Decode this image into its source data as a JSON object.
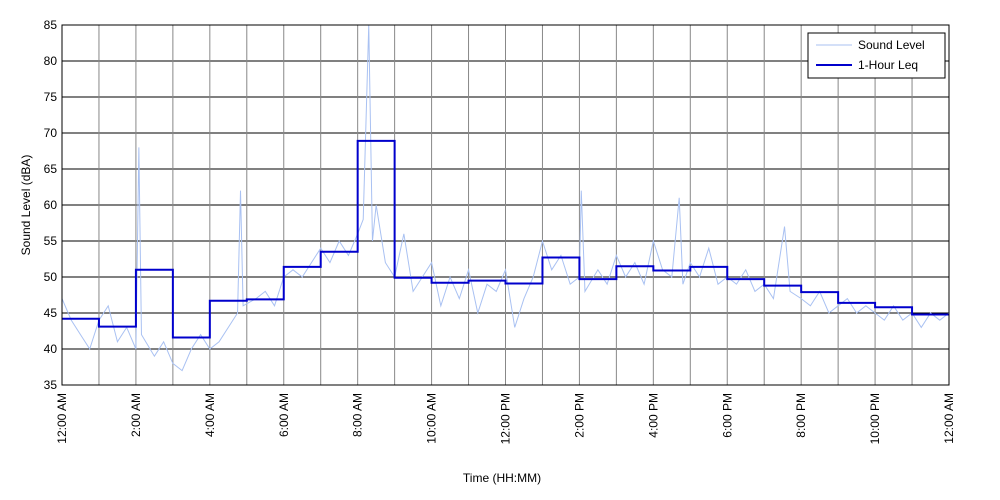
{
  "chart_data": {
    "type": "line",
    "xlabel": "Time (HH:MM)",
    "ylabel": "Sound Level (dBA)",
    "xlim": [
      0,
      24
    ],
    "ylim": [
      35,
      85
    ],
    "xticks": [
      {
        "value": 0,
        "label": "12:00 AM"
      },
      {
        "value": 2,
        "label": "2:00 AM"
      },
      {
        "value": 4,
        "label": "4:00 AM"
      },
      {
        "value": 6,
        "label": "6:00 AM"
      },
      {
        "value": 8,
        "label": "8:00 AM"
      },
      {
        "value": 10,
        "label": "10:00 AM"
      },
      {
        "value": 12,
        "label": "12:00 PM"
      },
      {
        "value": 14,
        "label": "2:00 PM"
      },
      {
        "value": 16,
        "label": "4:00 PM"
      },
      {
        "value": 18,
        "label": "6:00 PM"
      },
      {
        "value": 20,
        "label": "8:00 PM"
      },
      {
        "value": 22,
        "label": "10:00 PM"
      },
      {
        "value": 24,
        "label": "12:00 AM"
      }
    ],
    "xminorticks": [
      1,
      3,
      5,
      7,
      9,
      11,
      13,
      15,
      17,
      19,
      21,
      23
    ],
    "yticks": [
      35,
      40,
      45,
      50,
      55,
      60,
      65,
      70,
      75,
      80,
      85
    ],
    "grid": true,
    "legend": "upper right",
    "series": [
      {
        "name": "Sound Level",
        "color": "#a9c1f2",
        "style": "line",
        "x": [
          0,
          0.25,
          0.5,
          0.75,
          1,
          1.25,
          1.5,
          1.75,
          2,
          2.08,
          2.15,
          2.5,
          2.75,
          3,
          3.25,
          3.5,
          3.75,
          4,
          4.25,
          4.5,
          4.75,
          4.83,
          4.9,
          5.25,
          5.5,
          5.75,
          6,
          6.25,
          6.5,
          6.75,
          7,
          7.25,
          7.5,
          7.75,
          8,
          8.15,
          8.3,
          8.4,
          8.5,
          8.75,
          9,
          9.25,
          9.5,
          9.75,
          10,
          10.25,
          10.5,
          10.75,
          11,
          11.25,
          11.5,
          11.75,
          12,
          12.25,
          12.5,
          12.75,
          13,
          13.25,
          13.5,
          13.75,
          14,
          14.05,
          14.15,
          14.5,
          14.75,
          15,
          15.25,
          15.5,
          15.75,
          16,
          16.25,
          16.5,
          16.7,
          16.8,
          17,
          17.25,
          17.5,
          17.75,
          18,
          18.25,
          18.5,
          18.75,
          19,
          19.25,
          19.55,
          19.7,
          20,
          20.25,
          20.5,
          20.75,
          21,
          21.25,
          21.5,
          21.75,
          22,
          22.25,
          22.5,
          22.75,
          23,
          23.25,
          23.5,
          23.75,
          24
        ],
        "values": [
          47,
          44,
          42,
          40,
          44,
          46,
          41,
          43,
          40,
          68,
          42,
          39,
          41,
          38,
          37,
          40,
          42,
          40,
          41,
          43,
          45,
          62,
          46,
          47,
          48,
          46,
          50,
          51,
          50,
          52,
          54,
          52,
          55,
          53,
          56,
          58,
          85,
          55,
          60,
          52,
          50,
          56,
          48,
          50,
          52,
          46,
          50,
          47,
          51,
          45,
          49,
          48,
          51,
          43,
          47,
          50,
          55,
          51,
          53,
          49,
          50,
          62,
          48,
          51,
          49,
          53,
          50,
          52,
          49,
          55,
          51,
          50,
          61,
          49,
          52,
          50,
          54,
          49,
          50,
          49,
          51,
          48,
          49,
          47,
          57,
          48,
          47,
          46,
          48,
          45,
          46,
          47,
          45,
          46,
          45,
          44,
          46,
          44,
          45,
          43,
          45,
          44,
          45
        ]
      },
      {
        "name": "1-Hour Leq",
        "color": "#0000cc",
        "style": "step",
        "bins": [
          0,
          1,
          2,
          3,
          4,
          5,
          6,
          7,
          8,
          9,
          10,
          11,
          12,
          13,
          14,
          15,
          16,
          17,
          18,
          19,
          20,
          21,
          22,
          23,
          24
        ],
        "values": [
          44.2,
          43.1,
          51.0,
          41.6,
          46.7,
          46.9,
          51.4,
          53.5,
          68.9,
          49.9,
          49.2,
          49.5,
          49.1,
          52.7,
          49.7,
          51.5,
          50.9,
          51.4,
          49.7,
          48.8,
          47.9,
          46.4,
          45.8,
          44.8
        ]
      }
    ]
  }
}
